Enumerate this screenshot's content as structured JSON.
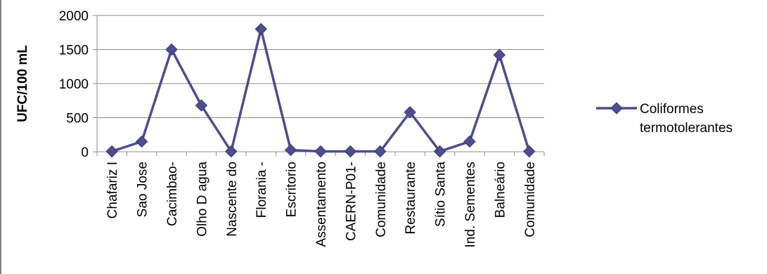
{
  "chart_data": {
    "type": "line",
    "ylabel": "UFC/100 mL",
    "xlabel": "",
    "title": "",
    "ylim": [
      0,
      2000
    ],
    "yticks": [
      0,
      500,
      1000,
      1500,
      2000
    ],
    "grid": true,
    "legend_position": "right",
    "categories": [
      "Chafariz I",
      "Sao Jose",
      "Cacimbao-",
      "Olho D agua",
      "Nascente do",
      "Florania -",
      "Escritorio",
      "Assentamento",
      "CAERN-P01-",
      "Comunidade",
      "Restaurante",
      "Sítio Santa",
      "Ind. Sementes",
      "Balneário",
      "Comunidade"
    ],
    "series": [
      {
        "name_lines": [
          "Coliformes",
          "termotolerantes"
        ],
        "color": "#4d4d8f",
        "values": [
          5,
          150,
          1500,
          680,
          5,
          1800,
          25,
          5,
          5,
          5,
          580,
          5,
          150,
          1420,
          5
        ]
      }
    ]
  }
}
